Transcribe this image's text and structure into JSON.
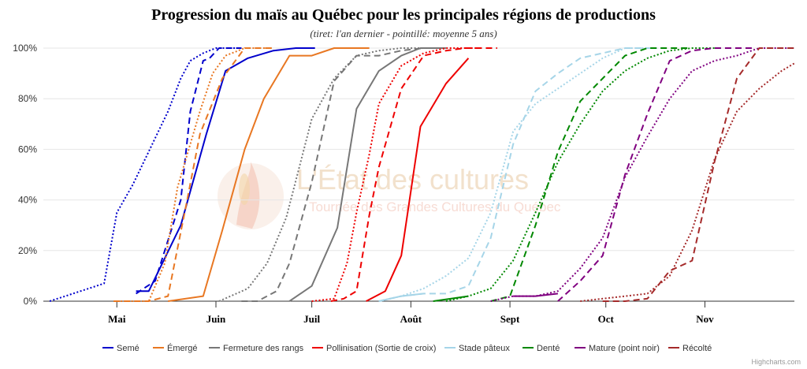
{
  "chart_data": {
    "type": "line",
    "title": "Progression du maïs au Québec pour les principales régions de productions",
    "subtitle": "(tiret: l'an dernier - pointillé: moyenne 5 ans)",
    "ylim": [
      0,
      100
    ],
    "y_ticks": [
      "0%",
      "20%",
      "40%",
      "60%",
      "80%",
      "100%"
    ],
    "x_ticks": [
      "Mai",
      "Juin",
      "Juil",
      "Août",
      "Sept",
      "Oct",
      "Nov"
    ],
    "x_tick_days": [
      121,
      152,
      182,
      213,
      244,
      274,
      305
    ],
    "x_range_days": [
      98,
      333
    ],
    "x_unit": "day of year",
    "legend_position": "bottom",
    "grid": true,
    "watermark": {
      "title": "L'État des cultures",
      "subtitle": "Tournée des Grandes Cultures du Québec"
    },
    "credits": "Highcharts.com",
    "series": [
      {
        "name": "Semé",
        "color": "#0000cc",
        "current": [
          [
            127,
            4
          ],
          [
            131,
            4
          ],
          [
            141,
            30
          ],
          [
            149,
            66
          ],
          [
            155,
            91
          ],
          [
            162,
            96
          ],
          [
            170,
            99
          ],
          [
            177,
            100
          ],
          [
            183,
            100
          ]
        ],
        "last_year": [
          [
            127,
            3
          ],
          [
            133,
            8
          ],
          [
            141,
            40
          ],
          [
            144,
            75
          ],
          [
            147,
            90
          ],
          [
            148,
            95
          ],
          [
            150,
            96
          ],
          [
            153,
            100
          ],
          [
            160,
            100
          ]
        ],
        "avg5": [
          [
            100,
            0
          ],
          [
            117,
            7
          ],
          [
            121,
            35
          ],
          [
            126,
            46
          ],
          [
            137,
            75
          ],
          [
            141,
            88
          ],
          [
            144,
            95
          ],
          [
            148,
            98
          ],
          [
            152,
            100
          ],
          [
            160,
            100
          ]
        ]
      },
      {
        "name": "Émergé",
        "color": "#e87722",
        "current": [
          [
            137,
            0
          ],
          [
            148,
            2
          ],
          [
            154,
            28
          ],
          [
            161,
            60
          ],
          [
            167,
            80
          ],
          [
            175,
            97
          ],
          [
            182,
            97
          ],
          [
            189,
            100
          ],
          [
            200,
            100
          ]
        ],
        "last_year": [
          [
            120,
            0
          ],
          [
            131,
            0
          ],
          [
            137,
            2
          ],
          [
            143,
            40
          ],
          [
            147,
            66
          ],
          [
            154,
            88
          ],
          [
            161,
            100
          ],
          [
            170,
            100
          ]
        ],
        "avg5": [
          [
            120,
            0
          ],
          [
            131,
            0
          ],
          [
            136,
            15
          ],
          [
            140,
            45
          ],
          [
            147,
            75
          ],
          [
            151,
            90
          ],
          [
            155,
            97
          ],
          [
            161,
            100
          ],
          [
            170,
            100
          ]
        ]
      },
      {
        "name": "Fermeture des rangs",
        "color": "#777777",
        "current": [
          [
            175,
            0
          ],
          [
            182,
            6
          ],
          [
            190,
            29
          ],
          [
            196,
            76
          ],
          [
            203,
            91
          ],
          [
            210,
            97
          ],
          [
            216,
            100
          ],
          [
            224,
            100
          ]
        ],
        "last_year": [
          [
            160,
            0
          ],
          [
            165,
            0
          ],
          [
            171,
            4
          ],
          [
            175,
            15
          ],
          [
            182,
            47
          ],
          [
            189,
            87
          ],
          [
            196,
            97
          ],
          [
            203,
            97
          ],
          [
            210,
            99
          ],
          [
            217,
            100
          ],
          [
            224,
            100
          ]
        ],
        "avg5": [
          [
            153,
            0
          ],
          [
            162,
            5
          ],
          [
            168,
            15
          ],
          [
            174,
            33
          ],
          [
            182,
            72
          ],
          [
            189,
            88
          ],
          [
            196,
            97
          ],
          [
            203,
            99
          ],
          [
            210,
            100
          ],
          [
            220,
            100
          ]
        ]
      },
      {
        "name": "Pollinisation (Sortie de croix)",
        "color": "#ee0000",
        "current": [
          [
            199,
            0
          ],
          [
            205,
            4
          ],
          [
            210,
            18
          ],
          [
            216,
            69
          ],
          [
            224,
            86
          ],
          [
            231,
            96
          ]
        ],
        "last_year": [
          [
            188,
            0
          ],
          [
            192,
            1
          ],
          [
            196,
            4
          ],
          [
            200,
            34
          ],
          [
            203,
            53
          ],
          [
            210,
            84
          ],
          [
            217,
            97
          ],
          [
            224,
            99
          ],
          [
            230,
            100
          ],
          [
            240,
            100
          ]
        ],
        "avg5": [
          [
            182,
            0
          ],
          [
            189,
            1
          ],
          [
            193,
            15
          ],
          [
            196,
            35
          ],
          [
            200,
            58
          ],
          [
            203,
            78
          ],
          [
            210,
            93
          ],
          [
            217,
            98
          ],
          [
            224,
            100
          ],
          [
            235,
            100
          ]
        ]
      },
      {
        "name": "Stade pâteux",
        "color": "#a6d5e8",
        "current": [
          [
            203,
            0
          ],
          [
            210,
            2
          ],
          [
            217,
            3
          ]
        ],
        "last_year": [
          [
            203,
            0
          ],
          [
            210,
            2
          ],
          [
            217,
            3
          ],
          [
            224,
            3
          ],
          [
            231,
            6
          ],
          [
            238,
            25
          ],
          [
            245,
            62
          ],
          [
            252,
            83
          ],
          [
            259,
            90
          ],
          [
            266,
            96
          ],
          [
            273,
            98
          ],
          [
            280,
            100
          ],
          [
            290,
            100
          ]
        ],
        "avg5": [
          [
            203,
            0
          ],
          [
            210,
            2
          ],
          [
            217,
            5
          ],
          [
            224,
            10
          ],
          [
            231,
            17
          ],
          [
            238,
            35
          ],
          [
            245,
            67
          ],
          [
            252,
            78
          ],
          [
            259,
            84
          ],
          [
            266,
            90
          ],
          [
            273,
            96
          ],
          [
            280,
            100
          ],
          [
            290,
            100
          ]
        ]
      },
      {
        "name": "Denté",
        "color": "#008800",
        "current": [
          [
            220,
            0
          ],
          [
            231,
            2
          ]
        ],
        "last_year": [
          [
            238,
            0
          ],
          [
            244,
            2
          ],
          [
            252,
            30
          ],
          [
            259,
            59
          ],
          [
            266,
            79
          ],
          [
            273,
            88
          ],
          [
            280,
            97
          ],
          [
            287,
            100
          ],
          [
            300,
            100
          ]
        ],
        "avg5": [
          [
            224,
            0
          ],
          [
            231,
            2
          ],
          [
            238,
            5
          ],
          [
            245,
            16
          ],
          [
            252,
            35
          ],
          [
            259,
            55
          ],
          [
            266,
            70
          ],
          [
            273,
            83
          ],
          [
            280,
            91
          ],
          [
            287,
            96
          ],
          [
            294,
            99
          ],
          [
            301,
            100
          ],
          [
            310,
            100
          ]
        ]
      },
      {
        "name": "Mature (point noir)",
        "color": "#800080",
        "current": [
          [
            245,
            2
          ],
          [
            252,
            2
          ],
          [
            259,
            3
          ]
        ],
        "last_year": [
          [
            259,
            0
          ],
          [
            266,
            8
          ],
          [
            273,
            18
          ],
          [
            280,
            50
          ],
          [
            287,
            74
          ],
          [
            294,
            95
          ],
          [
            301,
            99
          ],
          [
            308,
            100
          ],
          [
            320,
            100
          ]
        ],
        "avg5": [
          [
            238,
            0
          ],
          [
            245,
            2
          ],
          [
            252,
            2
          ],
          [
            259,
            4
          ],
          [
            266,
            13
          ],
          [
            273,
            25
          ],
          [
            280,
            49
          ],
          [
            287,
            65
          ],
          [
            294,
            80
          ],
          [
            301,
            91
          ],
          [
            308,
            95
          ],
          [
            315,
            97
          ],
          [
            322,
            100
          ],
          [
            333,
            100
          ]
        ]
      },
      {
        "name": "Récolté",
        "color": "#a52a2a",
        "current": [],
        "last_year": [
          [
            273,
            0
          ],
          [
            280,
            0
          ],
          [
            287,
            1
          ],
          [
            294,
            12
          ],
          [
            301,
            16
          ],
          [
            308,
            55
          ],
          [
            315,
            88
          ],
          [
            322,
            100
          ],
          [
            333,
            100
          ]
        ],
        "avg5": [
          [
            266,
            0
          ],
          [
            273,
            1
          ],
          [
            280,
            2
          ],
          [
            287,
            3
          ],
          [
            294,
            10
          ],
          [
            301,
            28
          ],
          [
            308,
            56
          ],
          [
            315,
            75
          ],
          [
            322,
            84
          ],
          [
            329,
            91
          ],
          [
            333,
            94
          ]
        ]
      }
    ]
  }
}
